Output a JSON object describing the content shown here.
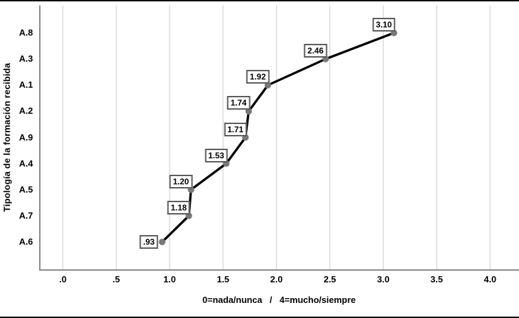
{
  "figure": {
    "background": "#ffffff",
    "border_color": "#000000"
  },
  "chart_data": {
    "type": "line",
    "orientation": "categories-on-y-axis",
    "title": "",
    "ylabel": "Tipología de la formación recibida",
    "xlabel": "0=nada/nunca   /   4=mucho/siempre",
    "categories": [
      "A.8",
      "A.3",
      "A.1",
      "A.2",
      "A.9",
      "A.4",
      "A.5",
      "A.7",
      "A.6"
    ],
    "values": [
      3.1,
      2.46,
      1.92,
      1.74,
      1.71,
      1.53,
      1.2,
      1.18,
      0.93
    ],
    "point_labels": [
      "3.10",
      "2.46",
      "1.92",
      "1.74",
      "1.71",
      "1.53",
      "1.20",
      "1.18",
      ".93"
    ],
    "xlim": [
      -0.22,
      4.27
    ],
    "xticks": [
      0,
      0.5,
      1,
      1.5,
      2,
      2.5,
      3,
      3.5,
      4
    ],
    "xtick_labels": [
      ".0",
      ".5",
      "1.0",
      "1.5",
      "2.0",
      "2.5",
      "3.0",
      "3.5",
      "4.0"
    ],
    "grid": "vertical-major-only",
    "legend": "none",
    "colors": {
      "line": "#000000",
      "marker": "#787878",
      "grid": "#d6d6d6",
      "axis": "#8a8a8a",
      "label_box_border": "#5a5a5a",
      "label_box_bg": "#ffffff",
      "text": "#000000"
    }
  }
}
